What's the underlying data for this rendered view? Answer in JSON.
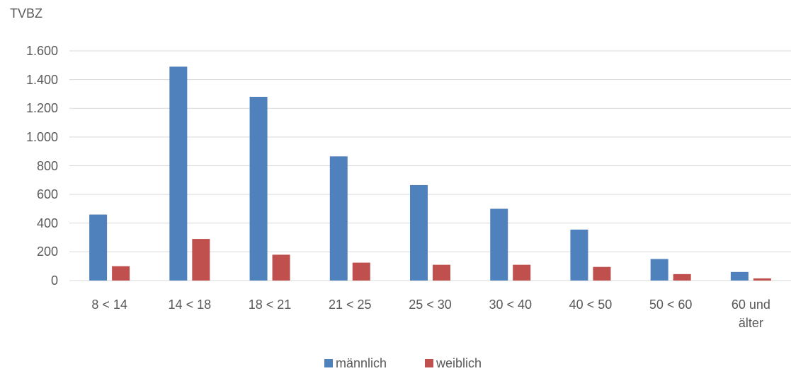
{
  "chart_data": {
    "type": "bar",
    "y_axis_title": "TVBZ",
    "categories": [
      "8 < 14",
      "14 < 18",
      "18 < 21",
      "21 < 25",
      "25 < 30",
      "30 < 40",
      "40 < 50",
      "50 < 60",
      "60 und älter"
    ],
    "series": [
      {
        "name": "männlich",
        "color": "#4f81bd",
        "values": [
          460,
          1490,
          1280,
          865,
          665,
          500,
          355,
          150,
          60
        ]
      },
      {
        "name": "weiblich",
        "color": "#c0504d",
        "values": [
          100,
          290,
          180,
          125,
          110,
          110,
          95,
          45,
          15
        ]
      }
    ],
    "ylim": [
      0,
      1600
    ],
    "yticks": [
      0,
      200,
      400,
      600,
      800,
      {
        "value": 1000,
        "label": "1.000"
      },
      {
        "value": 1200,
        "label": "1.200"
      },
      {
        "value": 1400,
        "label": "1.400"
      },
      {
        "value": 1600,
        "label": "1.600"
      }
    ],
    "grid": true,
    "legend": "bottom"
  }
}
